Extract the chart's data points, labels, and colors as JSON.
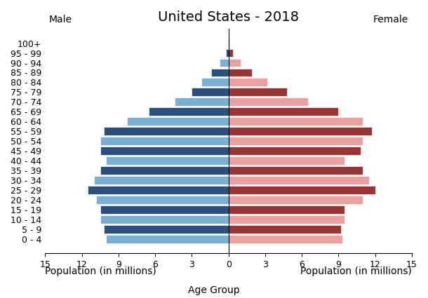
{
  "title": "United States - 2018",
  "age_groups": [
    "100+",
    "95 - 99",
    "90 - 94",
    "85 - 89",
    "80 - 84",
    "75 - 79",
    "70 - 74",
    "65 - 69",
    "60 - 64",
    "55 - 59",
    "50 - 54",
    "45 - 49",
    "40 - 44",
    "35 - 39",
    "30 - 34",
    "25 - 29",
    "20 - 24",
    "15 - 19",
    "10 - 14",
    "5 - 9",
    "0 - 4"
  ],
  "male": [
    0.05,
    0.2,
    0.7,
    1.4,
    2.2,
    3.0,
    4.4,
    6.5,
    8.3,
    10.2,
    10.5,
    10.5,
    10.0,
    10.5,
    11.0,
    11.5,
    10.8,
    10.5,
    10.5,
    10.2,
    10.0
  ],
  "female": [
    0.1,
    0.35,
    1.0,
    1.9,
    3.2,
    4.8,
    6.5,
    9.0,
    11.0,
    11.7,
    11.0,
    10.8,
    9.5,
    11.0,
    11.5,
    12.0,
    11.0,
    9.5,
    9.5,
    9.2,
    9.3
  ],
  "male_colors_dark": "#2b4f7e",
  "male_colors_light": "#7bafd4",
  "female_colors_dark": "#9b3535",
  "female_colors_light": "#e8a0a0",
  "xlim": 15,
  "xtick_positions": [
    -15,
    -12,
    -9,
    -6,
    -3,
    0,
    3,
    6,
    9,
    12,
    15
  ],
  "xtick_labels": [
    "15",
    "12",
    "9",
    "6",
    "3",
    "0",
    "3",
    "6",
    "9",
    "12",
    "15"
  ],
  "xlabel_left": "Population (in millions)",
  "xlabel_center": "Age Group",
  "xlabel_right": "Population (in millions)",
  "label_male": "Male",
  "label_female": "Female",
  "background_color": "#ffffff",
  "tick_fontsize": 9,
  "label_fontsize": 10,
  "title_fontsize": 14
}
